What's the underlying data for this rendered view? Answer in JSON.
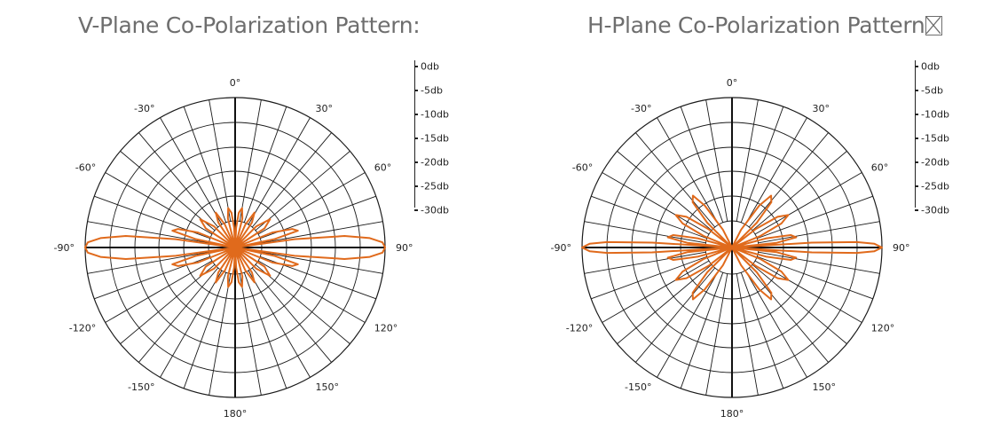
{
  "chart_data": [
    {
      "type": "polar",
      "title": "V-Plane Co-Polarization Pattern:",
      "angle_labels": [
        "0°",
        "30°",
        "60°",
        "90°",
        "120°",
        "150°",
        "180°",
        "-150°",
        "-120°",
        "-90°",
        "-60°",
        "-30°"
      ],
      "radial_scale": [
        "0db",
        "-5db",
        "-10db",
        "-15db",
        "-20db",
        "-25db",
        "-30db"
      ],
      "r_range_db": [
        -30,
        0
      ],
      "grid": true,
      "series": [
        {
          "color": "#e06a1c",
          "points": [
            {
              "angle": 0,
              "db": -30
            },
            {
              "angle": 3,
              "db": -26
            },
            {
              "angle": 6,
              "db": -23
            },
            {
              "angle": 10,
              "db": -22
            },
            {
              "angle": 14,
              "db": -24
            },
            {
              "angle": 18,
              "db": -30
            },
            {
              "angle": 24,
              "db": -25
            },
            {
              "angle": 29,
              "db": -22
            },
            {
              "angle": 34,
              "db": -24
            },
            {
              "angle": 39,
              "db": -30
            },
            {
              "angle": 45,
              "db": -24
            },
            {
              "angle": 51,
              "db": -21
            },
            {
              "angle": 57,
              "db": -23
            },
            {
              "angle": 63,
              "db": -30
            },
            {
              "angle": 68,
              "db": -22
            },
            {
              "angle": 72,
              "db": -18
            },
            {
              "angle": 75,
              "db": -17
            },
            {
              "angle": 78,
              "db": -22
            },
            {
              "angle": 80,
              "db": -30
            },
            {
              "angle": 82,
              "db": -18
            },
            {
              "angle": 84,
              "db": -8
            },
            {
              "angle": 86,
              "db": -3
            },
            {
              "angle": 88,
              "db": -0.5
            },
            {
              "angle": 90,
              "db": 0
            },
            {
              "angle": 92,
              "db": -0.5
            },
            {
              "angle": 94,
              "db": -3
            },
            {
              "angle": 96,
              "db": -8
            },
            {
              "angle": 98,
              "db": -18
            },
            {
              "angle": 100,
              "db": -30
            },
            {
              "angle": 102,
              "db": -22
            },
            {
              "angle": 105,
              "db": -17
            },
            {
              "angle": 108,
              "db": -18
            },
            {
              "angle": 112,
              "db": -22
            },
            {
              "angle": 117,
              "db": -30
            },
            {
              "angle": 123,
              "db": -23
            },
            {
              "angle": 129,
              "db": -21
            },
            {
              "angle": 135,
              "db": -24
            },
            {
              "angle": 141,
              "db": -30
            },
            {
              "angle": 146,
              "db": -24
            },
            {
              "angle": 151,
              "db": -22
            },
            {
              "angle": 156,
              "db": -25
            },
            {
              "angle": 162,
              "db": -30
            },
            {
              "angle": 166,
              "db": -24
            },
            {
              "angle": 170,
              "db": -22
            },
            {
              "angle": 174,
              "db": -23
            },
            {
              "angle": 177,
              "db": -26
            },
            {
              "angle": 180,
              "db": -30
            }
          ]
        }
      ]
    },
    {
      "type": "polar",
      "title": "H-Plane Co-Polarization Pattern",
      "angle_labels": [
        "0°",
        "30°",
        "60°",
        "90°",
        "120°",
        "150°",
        "180°",
        "-150°",
        "-120°",
        "-90°",
        "-60°",
        "-30°"
      ],
      "radial_scale": [
        "0db",
        "-5db",
        "-10db",
        "-15db",
        "-20db",
        "-25db",
        "-30db"
      ],
      "r_range_db": [
        -30,
        0
      ],
      "grid": true,
      "series": [
        {
          "color": "#e06a1c",
          "points": [
            {
              "angle": 0,
              "db": -30
            },
            {
              "angle": 20,
              "db": -30
            },
            {
              "angle": 27,
              "db": -26
            },
            {
              "angle": 33,
              "db": -20
            },
            {
              "angle": 37,
              "db": -17
            },
            {
              "angle": 41,
              "db": -18
            },
            {
              "angle": 45,
              "db": -23
            },
            {
              "angle": 49,
              "db": -30
            },
            {
              "angle": 52,
              "db": -24
            },
            {
              "angle": 56,
              "db": -19
            },
            {
              "angle": 60,
              "db": -17
            },
            {
              "angle": 64,
              "db": -19
            },
            {
              "angle": 68,
              "db": -24
            },
            {
              "angle": 72,
              "db": -30
            },
            {
              "angle": 75,
              "db": -23
            },
            {
              "angle": 78,
              "db": -18
            },
            {
              "angle": 81,
              "db": -17
            },
            {
              "angle": 84,
              "db": -21
            },
            {
              "angle": 85.5,
              "db": -30
            },
            {
              "angle": 86.5,
              "db": -14
            },
            {
              "angle": 87.5,
              "db": -5
            },
            {
              "angle": 88.5,
              "db": -1.5
            },
            {
              "angle": 90,
              "db": 0
            },
            {
              "angle": 91.5,
              "db": -1.5
            },
            {
              "angle": 92.5,
              "db": -5
            },
            {
              "angle": 93.5,
              "db": -14
            },
            {
              "angle": 94.5,
              "db": -30
            },
            {
              "angle": 96,
              "db": -21
            },
            {
              "angle": 99,
              "db": -17
            },
            {
              "angle": 102,
              "db": -18
            },
            {
              "angle": 105,
              "db": -23
            },
            {
              "angle": 108,
              "db": -30
            },
            {
              "angle": 112,
              "db": -24
            },
            {
              "angle": 116,
              "db": -19
            },
            {
              "angle": 120,
              "db": -17
            },
            {
              "angle": 124,
              "db": -19
            },
            {
              "angle": 128,
              "db": -24
            },
            {
              "angle": 131,
              "db": -30
            },
            {
              "angle": 135,
              "db": -23
            },
            {
              "angle": 139,
              "db": -18
            },
            {
              "angle": 143,
              "db": -17
            },
            {
              "angle": 147,
              "db": -20
            },
            {
              "angle": 153,
              "db": -26
            },
            {
              "angle": 160,
              "db": -30
            },
            {
              "angle": 180,
              "db": -30
            }
          ]
        }
      ]
    }
  ]
}
